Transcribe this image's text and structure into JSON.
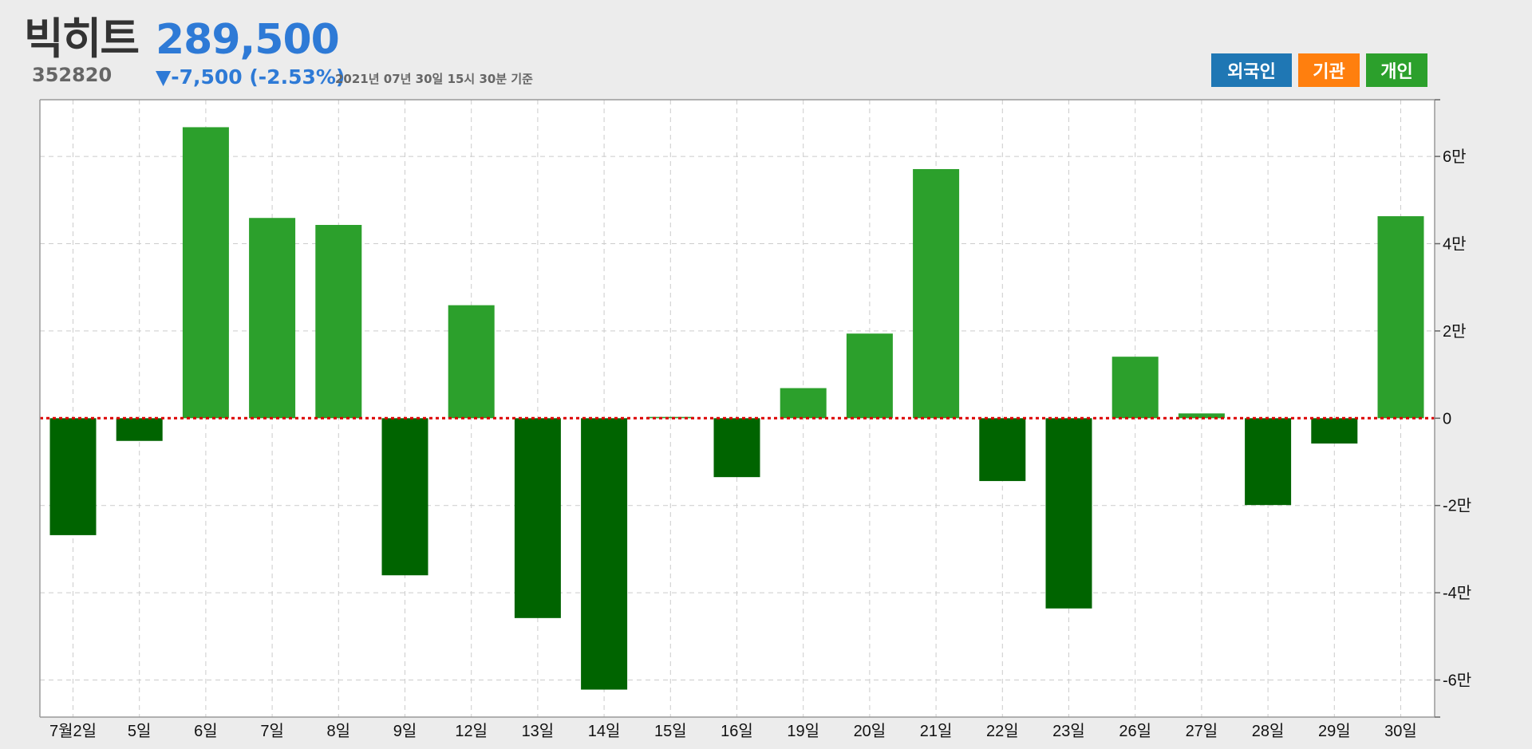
{
  "stock": {
    "name": "빅히트",
    "code": "352820",
    "price": "289,500",
    "change": "▼-7,500 (-2.53%)",
    "timestamp": "2021년 07년 30일 15시 30분 기준"
  },
  "legend": {
    "items": [
      {
        "label": "외국인",
        "color": "#1f77b4"
      },
      {
        "label": "기관",
        "color": "#ff7f0e"
      },
      {
        "label": "개인",
        "color": "#2ca02c"
      }
    ]
  },
  "colors": {
    "positive": "#2ca02c",
    "negative": "#006400",
    "zero_line": "#dd0000",
    "grid": "#cccccc",
    "price": "#2e7ad6"
  },
  "chart_data": {
    "type": "bar",
    "series": [
      {
        "name": "개인",
        "values": [
          -26800,
          -5200,
          66700,
          45900,
          44300,
          -36000,
          25900,
          -45800,
          -62200,
          300,
          -13500,
          6900,
          19400,
          57100,
          -14400,
          -43600,
          14100,
          1100,
          -19900,
          -5800,
          46300
        ]
      }
    ],
    "categories": [
      "7월2일",
      "5일",
      "6일",
      "7일",
      "8일",
      "9일",
      "12일",
      "13일",
      "14일",
      "15일",
      "16일",
      "19일",
      "20일",
      "21일",
      "22일",
      "23일",
      "26일",
      "27일",
      "28일",
      "29일",
      "30일"
    ],
    "yticks": [
      -60000,
      -40000,
      -20000,
      0,
      20000,
      40000,
      60000
    ],
    "ytick_labels": [
      "-6만",
      "-4만",
      "-2만",
      "0",
      "2만",
      "4만",
      "6만"
    ],
    "ylim": [
      -68500,
      73000
    ],
    "grid": true,
    "y_axis_position": "right",
    "zero_line": "dotted red"
  }
}
